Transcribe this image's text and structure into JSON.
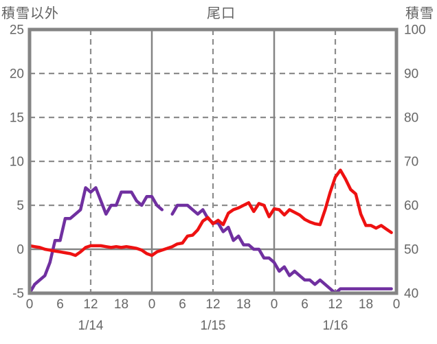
{
  "chart_data": {
    "type": "line",
    "title": "尾口",
    "left_axis": {
      "label": "積雪以外",
      "min": -5,
      "max": 25,
      "ticks": [
        25,
        20,
        15,
        10,
        5,
        0,
        -5
      ]
    },
    "right_axis": {
      "label": "積雪",
      "min": 40,
      "max": 100,
      "ticks": [
        100,
        90,
        80,
        70,
        60,
        50,
        40
      ]
    },
    "x_axis": {
      "hours_span": 72,
      "tick_step_hours": 6,
      "hour_tick_labels": [
        "0",
        "6",
        "12",
        "18",
        "0",
        "6",
        "12",
        "18",
        "0",
        "6",
        "12",
        "18",
        "0"
      ],
      "date_labels": [
        {
          "text": "1/14",
          "center_hour": 12
        },
        {
          "text": "1/15",
          "center_hour": 36
        },
        {
          "text": "1/16",
          "center_hour": 60
        }
      ]
    },
    "grid": {
      "h_dashed_left_values": [
        20,
        15,
        10,
        5
      ],
      "h_solid_left_values": [
        0
      ],
      "v_dashed_hours": [
        12,
        36,
        60
      ],
      "v_solid_hours": [
        24,
        48
      ]
    },
    "series": [
      {
        "name": "snow-depth",
        "label": "積雪",
        "axis": "right",
        "color": "#7030a0",
        "values": [
          40,
          42,
          43,
          44,
          47,
          52,
          52,
          57,
          57,
          58,
          59,
          64,
          63,
          64,
          61,
          58,
          60,
          60,
          63,
          63,
          63,
          61,
          60,
          62,
          62,
          60,
          59,
          null,
          58,
          60,
          60,
          60,
          59,
          58,
          59,
          57,
          56,
          56,
          54,
          55,
          52,
          53,
          51,
          51,
          50,
          50,
          48,
          48,
          47,
          45,
          46,
          44,
          45,
          44,
          43,
          43,
          42,
          43,
          42,
          41,
          40,
          41,
          41,
          41,
          41,
          41,
          41,
          41,
          41,
          41,
          41,
          41
        ]
      },
      {
        "name": "non-snow",
        "label": "積雪以外",
        "axis": "left",
        "color": "#ee1111",
        "values": [
          0.4,
          0.3,
          0.2,
          0.0,
          -0.1,
          -0.2,
          -0.3,
          -0.4,
          -0.5,
          -0.7,
          -0.3,
          0.2,
          0.4,
          0.4,
          0.4,
          0.3,
          0.2,
          0.3,
          0.2,
          0.3,
          0.2,
          0.1,
          -0.1,
          -0.5,
          -0.7,
          -0.3,
          -0.1,
          0.1,
          0.3,
          0.6,
          0.7,
          1.5,
          1.6,
          2.2,
          3.2,
          3.6,
          2.9,
          3.3,
          2.8,
          4.1,
          4.5,
          4.7,
          5.0,
          5.3,
          4.3,
          5.2,
          5.0,
          3.7,
          4.6,
          4.5,
          3.9,
          4.5,
          4.2,
          3.9,
          3.4,
          3.1,
          2.9,
          2.8,
          4.5,
          6.5,
          8.2,
          9.0,
          8.0,
          6.8,
          6.3,
          4.0,
          2.7,
          2.7,
          2.4,
          2.7,
          2.3,
          1.9
        ]
      }
    ],
    "legend": "none",
    "colors": {
      "frame": "#848484",
      "grid": "#8c8c8c",
      "text": "#666666"
    }
  }
}
